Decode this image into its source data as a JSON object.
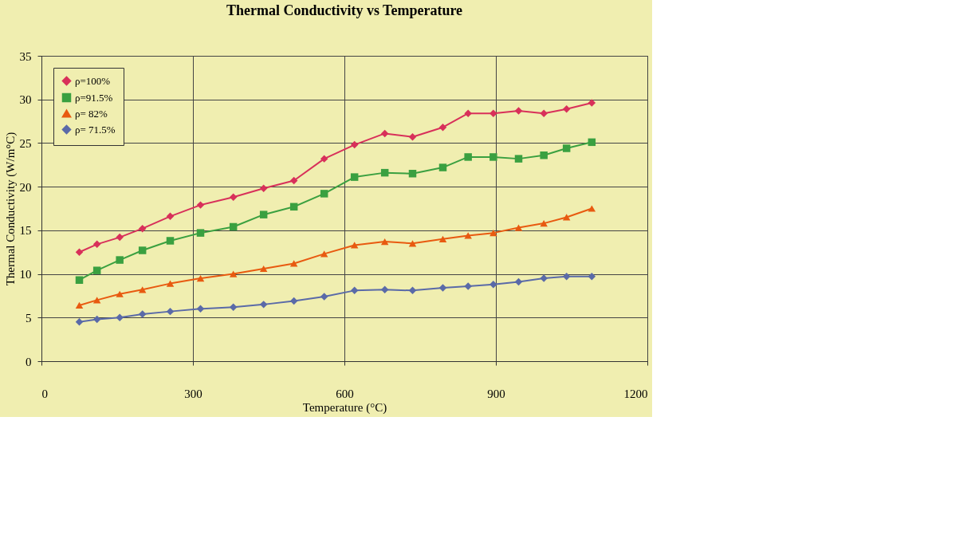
{
  "chart_data": {
    "type": "line",
    "title": "Thermal Conductivity vs Temperature",
    "xlabel": "Temperature (°C)",
    "ylabel": "Thermal Conductivity (W/m°C)",
    "x": [
      75,
      110,
      155,
      200,
      255,
      315,
      380,
      440,
      500,
      560,
      620,
      680,
      735,
      795,
      845,
      895,
      945,
      995,
      1040,
      1090
    ],
    "series": [
      {
        "name": "ρ=100%",
        "color": "#d8305a",
        "marker": "diamond",
        "values": [
          12.5,
          13.4,
          14.2,
          15.2,
          16.6,
          17.9,
          18.8,
          19.8,
          20.7,
          23.2,
          24.8,
          26.1,
          25.7,
          26.8,
          28.4,
          28.4,
          28.7,
          28.4,
          28.9,
          29.6
        ]
      },
      {
        "name": "ρ=91.5%",
        "color": "#3aa040",
        "marker": "square",
        "values": [
          9.3,
          10.4,
          11.6,
          12.7,
          13.8,
          14.7,
          15.4,
          16.8,
          17.7,
          19.2,
          21.1,
          21.6,
          21.5,
          22.2,
          23.4,
          23.4,
          23.2,
          23.6,
          24.4,
          25.1
        ]
      },
      {
        "name": "ρ= 82%",
        "color": "#e85a10",
        "marker": "triangle",
        "values": [
          6.4,
          7.0,
          7.7,
          8.2,
          8.9,
          9.5,
          10.0,
          10.6,
          11.2,
          12.3,
          13.3,
          13.7,
          13.5,
          14.0,
          14.4,
          14.7,
          15.3,
          15.8,
          16.5,
          17.5
        ]
      },
      {
        "name": "ρ= 71.5%",
        "color": "#5a6aa8",
        "marker": "diamond",
        "values": [
          4.5,
          4.8,
          5.0,
          5.4,
          5.7,
          6.0,
          6.2,
          6.5,
          6.9,
          7.4,
          8.1,
          8.2,
          8.1,
          8.4,
          8.6,
          8.8,
          9.1,
          9.5,
          9.7,
          9.7
        ]
      }
    ],
    "xlim": [
      0,
      1200
    ],
    "xticks": [
      0,
      300,
      600,
      900,
      1200
    ],
    "ylim": [
      0,
      35
    ],
    "yticks": [
      0,
      5,
      10,
      15,
      20,
      25,
      30,
      35
    ],
    "grid": true,
    "legend": "top left",
    "line_style": "solid"
  }
}
